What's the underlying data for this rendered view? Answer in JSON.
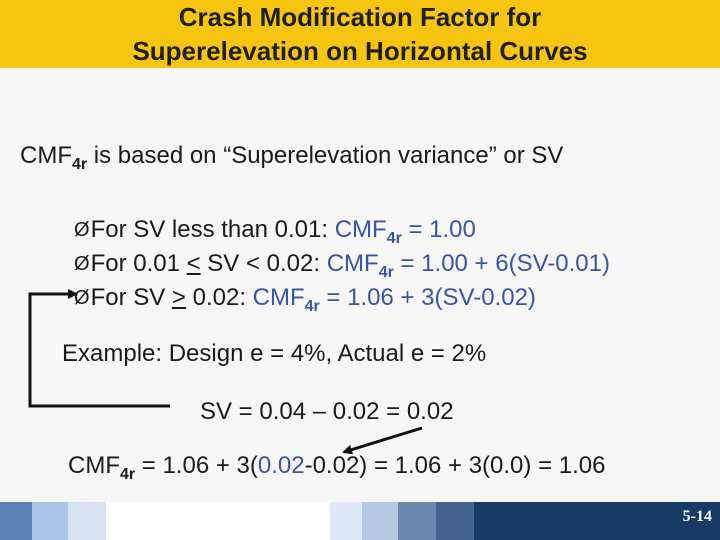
{
  "header": {
    "title_line1": "Crash Modification Factor for",
    "title_line2": "Superelevation on Horizontal Curves",
    "color": "#f6c50f"
  },
  "intro": {
    "prefix": "CMF",
    "sub": "4r",
    "suffix": " is based on “Superelevation variance” or SV"
  },
  "bullets": [
    {
      "marker": "Ø",
      "condition": "For SV less than 0.01:  ",
      "cmf": "CMF",
      "sub": "4r",
      "formula": " = 1.00"
    },
    {
      "marker": "Ø",
      "condition_a": "For 0.01 ",
      "lte": "<",
      "condition_b": " SV < 0.02:  ",
      "cmf": "CMF",
      "sub": "4r",
      "formula": " = 1.00 + 6(SV-0.01)"
    },
    {
      "marker": "Ø",
      "condition_a": "For SV ",
      "gte": ">",
      "condition_b": " 0.02:  ",
      "cmf": "CMF",
      "sub": "4r",
      "formula": " = 1.06 + 3(SV-0.02)"
    }
  ],
  "example": "Example:  Design e = 4%, Actual e = 2%",
  "sv_calc": "SV = 0.04 – 0.02 = 0.02",
  "final_calc": {
    "cmf": "CMF",
    "sub": "4r",
    "part1": " = 1.06 + 3(",
    "highlight": "0.02",
    "part2": "-0.02) = 1.06 + 3(0.0) = 1.06"
  },
  "footer": {
    "page": "5-14",
    "tile_colors": [
      "#5a7fb5",
      "#a9c2e6",
      "#d7e3f3",
      "#ffffff",
      "#dfe8f5",
      "#b6c9e3",
      "#6b87b0",
      "#44648f",
      "#2b4a74",
      "#173a66"
    ]
  },
  "colors": {
    "text": "#1a1a1a",
    "blue": "#3a55a4",
    "arrow": "#111111"
  }
}
